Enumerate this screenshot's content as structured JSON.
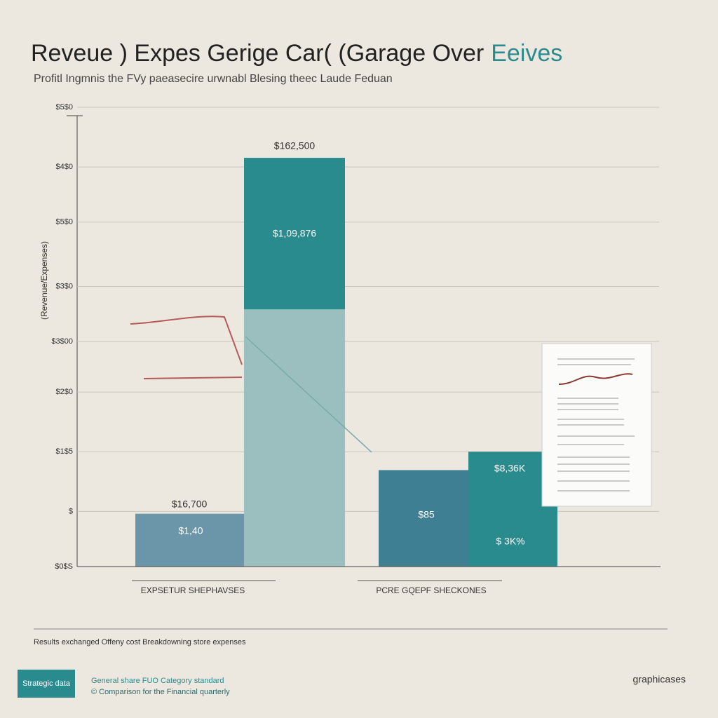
{
  "chart_data": {
    "type": "bar",
    "title": "Reveue ) Expes Gerige Car( (Garage Over",
    "title_accent": "Eeives",
    "subtitle": "Profitl Ingmnis the FVy paeasecire urwnabl Blesing theec Laude Feduan",
    "y_label": "(Revenue/Expenses)",
    "categories": [
      "EXPSETUR SHEPHAVSES",
      null,
      "PCRE GQEPF SHECKONES",
      null
    ],
    "series": [
      {
        "colors": [
          "#6b95a8",
          "#9bbfbf",
          "#3f7f94",
          "#2a8b8f"
        ],
        "values": [
          11.5,
          56,
          21,
          25
        ]
      },
      {
        "colors": [
          null,
          "#2a8b8f",
          null,
          null
        ],
        "values": [
          null,
          33,
          null,
          null
        ]
      }
    ],
    "stacked": true,
    "ylim": [
      0,
      100
    ],
    "yticks": [
      {
        "value": 0,
        "label": "$0$S"
      },
      {
        "value": 12,
        "label": "$"
      },
      {
        "value": 25,
        "label": "$1$5"
      },
      {
        "value": 38,
        "label": "$2$0"
      },
      {
        "value": 49,
        "label": "$3$00"
      },
      {
        "value": 61,
        "label": "$3$0"
      },
      {
        "value": 75,
        "label": "$5$0"
      },
      {
        "value": 87,
        "label": "$4$0"
      },
      {
        "value": 100,
        "label": "$5$0"
      }
    ],
    "grid": true,
    "annotations": [
      "$16,700",
      "$1,40",
      "$162,500",
      "$1,09,876",
      "$85",
      "$8,36K",
      "$ 3K%"
    ],
    "footnote": "Results exchanged Offeny cost Breakdowning store expenses",
    "badge": "Strategic data",
    "footer_lines": [
      "General share FUO Category standard",
      "© Comparison for the Financial quarterly"
    ],
    "brand": "graphicases"
  }
}
